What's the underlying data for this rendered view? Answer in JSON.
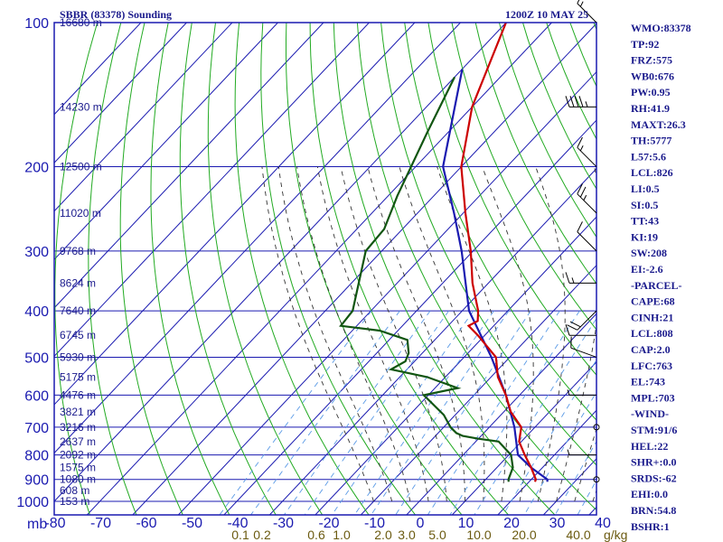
{
  "header": {
    "station": "SBBR (83378) Sounding",
    "valid_time": "1200Z 10 MAY 25"
  },
  "indices": [
    "WMO:83378",
    "TP:92",
    "FRZ:575",
    "WB0:676",
    "PW:0.95",
    "RH:41.9",
    "MAXT:26.3",
    "TH:5777",
    "L57:5.6",
    "LCL:826",
    "LI:0.5",
    "SI:0.5",
    "TT:43",
    "KI:19",
    "SW:208",
    "EI:-2.6",
    "-PARCEL-",
    "CAPE:68",
    "CINH:21",
    "LCL:808",
    "CAP:2.0",
    "LFC:763",
    "EL:743",
    "MPL:703",
    "-WIND-",
    "STM:91/6",
    "HEL:22",
    "SHR+:0.0",
    "SRDS:-62",
    "EHI:0.0",
    "BRN:54.8",
    "BSHR:1"
  ],
  "colors": {
    "frame": "#1a1ab0",
    "isotherm": "#1a1ab0",
    "dry_adiabat": "#22aa22",
    "moist_adiabat": "#333333",
    "mixing_ratio": "#5a9ae6",
    "temperature": "#cc0000",
    "dewpoint": "#115511",
    "parcel": "#1a1ab0"
  },
  "chart_data": {
    "type": "skew-T log-P sounding",
    "unit_label": "mb",
    "pressure_labels": [
      "100",
      "200",
      "300",
      "400",
      "500",
      "600",
      "700",
      "800",
      "900",
      "1000"
    ],
    "pressure_levels": [
      100,
      200,
      300,
      400,
      500,
      600,
      700,
      800,
      900,
      1000
    ],
    "height_labels": [
      {
        "p": 100,
        "text": "16680 m"
      },
      {
        "p": 150,
        "text": "14230 m"
      },
      {
        "p": 200,
        "text": "12500 m"
      },
      {
        "p": 250,
        "text": "11020 m"
      },
      {
        "p": 300,
        "text": "9768 m"
      },
      {
        "p": 350,
        "text": "8624 m"
      },
      {
        "p": 400,
        "text": "7640 m"
      },
      {
        "p": 450,
        "text": "6745 m"
      },
      {
        "p": 500,
        "text": "5930 m"
      },
      {
        "p": 550,
        "text": "5175 m"
      },
      {
        "p": 600,
        "text": "4476 m"
      },
      {
        "p": 650,
        "text": "3821 m"
      },
      {
        "p": 700,
        "text": "3216 m"
      },
      {
        "p": 750,
        "text": "2637 m"
      },
      {
        "p": 800,
        "text": "2092 m"
      },
      {
        "p": 850,
        "text": "1575 m"
      },
      {
        "p": 900,
        "text": "1080 m"
      },
      {
        "p": 950,
        "text": "608 m"
      },
      {
        "p": 1000,
        "text": "153 m"
      }
    ],
    "temperature_ticks": [
      "-80",
      "-70",
      "-60",
      "-50",
      "-40",
      "-30",
      "-20",
      "-10",
      "0",
      "10",
      "20",
      "30",
      "40"
    ],
    "mixing_ratio_labels": [
      "0.1",
      "0.2",
      "0.6",
      "1.0",
      "2.0",
      "3.0",
      "5.0",
      "10.0",
      "20.0",
      "40.0"
    ],
    "mixing_ratio_unit": "g/kg",
    "temperature_profile": [
      {
        "p": 100,
        "t": -80.0
      },
      {
        "p": 150,
        "t": -70.0
      },
      {
        "p": 200,
        "t": -60.0
      },
      {
        "p": 250,
        "t": -49.5
      },
      {
        "p": 300,
        "t": -40.5
      },
      {
        "p": 350,
        "t": -33.5
      },
      {
        "p": 400,
        "t": -26.5
      },
      {
        "p": 420,
        "t": -24.5
      },
      {
        "p": 430,
        "t": -25.5
      },
      {
        "p": 450,
        "t": -21.5
      },
      {
        "p": 500,
        "t": -13.0
      },
      {
        "p": 550,
        "t": -8.5
      },
      {
        "p": 600,
        "t": -3.0
      },
      {
        "p": 650,
        "t": 1.5
      },
      {
        "p": 700,
        "t": 7.0
      },
      {
        "p": 750,
        "t": 9.5
      },
      {
        "p": 800,
        "t": 13.5
      },
      {
        "p": 850,
        "t": 17.5
      },
      {
        "p": 900,
        "t": 21.0
      },
      {
        "p": 910,
        "t": 21.3
      }
    ],
    "dewpoint_profile": [
      {
        "p": 130,
        "t": -80.0
      },
      {
        "p": 170,
        "t": -74.5
      },
      {
        "p": 230,
        "t": -68.0
      },
      {
        "p": 270,
        "t": -64.0
      },
      {
        "p": 300,
        "t": -63.5
      },
      {
        "p": 400,
        "t": -54.0
      },
      {
        "p": 430,
        "t": -53.5
      },
      {
        "p": 440,
        "t": -44.0
      },
      {
        "p": 460,
        "t": -36.0
      },
      {
        "p": 490,
        "t": -33.0
      },
      {
        "p": 510,
        "t": -32.0
      },
      {
        "p": 530,
        "t": -33.5
      },
      {
        "p": 550,
        "t": -24.0
      },
      {
        "p": 580,
        "t": -15.0
      },
      {
        "p": 600,
        "t": -21.0
      },
      {
        "p": 660,
        "t": -12.5
      },
      {
        "p": 700,
        "t": -8.5
      },
      {
        "p": 720,
        "t": -6.0
      },
      {
        "p": 730,
        "t": -4.0
      },
      {
        "p": 740,
        "t": 0.0
      },
      {
        "p": 750,
        "t": 5.0
      },
      {
        "p": 800,
        "t": 10.5
      },
      {
        "p": 850,
        "t": 13.5
      },
      {
        "p": 900,
        "t": 15.0
      },
      {
        "p": 910,
        "t": 15.5
      }
    ],
    "parcel_profile": [
      {
        "p": 125,
        "t": -80.0
      },
      {
        "p": 200,
        "t": -64.0
      },
      {
        "p": 250,
        "t": -52.0
      },
      {
        "p": 300,
        "t": -42.5
      },
      {
        "p": 400,
        "t": -28.5
      },
      {
        "p": 500,
        "t": -14.0
      },
      {
        "p": 600,
        "t": -3.0
      },
      {
        "p": 700,
        "t": 5.5
      },
      {
        "p": 800,
        "t": 12.0
      },
      {
        "p": 850,
        "t": 17.5
      },
      {
        "p": 900,
        "t": 23.5
      },
      {
        "p": 910,
        "t": 24.0
      }
    ],
    "wind_barbs": [
      {
        "p": 100,
        "dir": 315,
        "spd": 15
      },
      {
        "p": 150,
        "dir": 270,
        "spd": 45
      },
      {
        "p": 200,
        "dir": 315,
        "spd": 15
      },
      {
        "p": 250,
        "dir": 315,
        "spd": 25
      },
      {
        "p": 300,
        "dir": 315,
        "spd": 10
      },
      {
        "p": 350,
        "dir": 270,
        "spd": 15
      },
      {
        "p": 400,
        "dir": 225,
        "spd": 20
      },
      {
        "p": 450,
        "dir": 270,
        "spd": 10
      },
      {
        "p": 500,
        "dir": 290,
        "spd": 10
      },
      {
        "p": 600,
        "dir": 270,
        "spd": 5
      },
      {
        "p": 700,
        "dir": 0,
        "spd": 0
      },
      {
        "p": 800,
        "dir": 270,
        "spd": 5
      },
      {
        "p": 900,
        "dir": 0,
        "spd": 0
      }
    ]
  }
}
